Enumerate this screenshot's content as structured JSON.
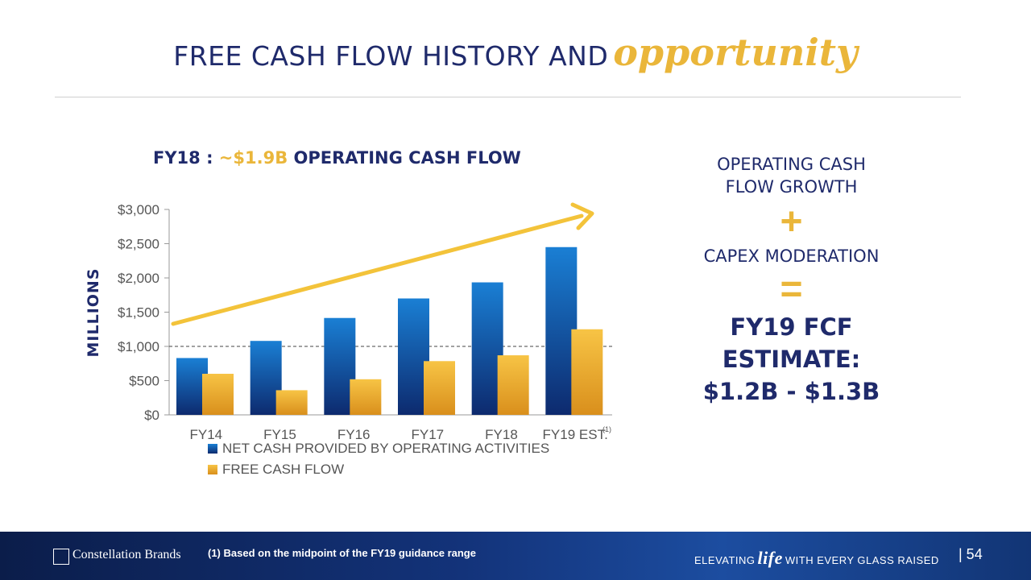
{
  "title": {
    "part1": "FREE CASH FLOW HISTORY AND",
    "part2": "opportunity"
  },
  "chart_data": {
    "type": "bar",
    "title_parts": [
      "FY18 : ",
      "~$1.9B",
      " OPERATING CASH FLOW"
    ],
    "ylabel": "MILLIONS",
    "categories": [
      "FY14",
      "FY15",
      "FY16",
      "FY17",
      "FY18",
      "FY19 EST."
    ],
    "category_footnote": "(1)",
    "yticks": [
      "$0",
      "$500",
      "$1,000",
      "$1,500",
      "$2,000",
      "$2,500",
      "$3,000"
    ],
    "ylim": [
      0,
      3000
    ],
    "reference_line": 1000,
    "series": [
      {
        "name": "NET CASH PROVIDED BY OPERATING ACTIVITIES",
        "values": [
          830,
          1080,
          1415,
          1700,
          1935,
          2450
        ],
        "color": "#1672c4"
      },
      {
        "name": "FREE CASH FLOW",
        "values": [
          600,
          360,
          520,
          785,
          870,
          1250
        ],
        "color": "#f0b22e"
      }
    ],
    "trend_arrow": true,
    "legend": "bottom",
    "grid": false
  },
  "right_panel": {
    "line1": "OPERATING CASH",
    "line2": "FLOW GROWTH",
    "plus": "+",
    "line3": "CAPEX MODERATION",
    "equals": "=",
    "result1": "FY19 FCF",
    "result2": "ESTIMATE:",
    "result3": "$1.2B - $1.3B"
  },
  "footer": {
    "logo_text": "Constellation Brands",
    "note": "(1)  Based on the midpoint of the FY19 guidance range",
    "tagline_pre": "ELEVATING",
    "tagline_life": "life",
    "tagline_post": "WITH EVERY GLASS RAISED",
    "page": "| 54"
  },
  "colors": {
    "navy": "#1f2a6b",
    "gold": "#eab63a",
    "blue_bar": "#1672c4",
    "gold_bar": "#f0b22e",
    "footer_bg": "#13337a"
  }
}
